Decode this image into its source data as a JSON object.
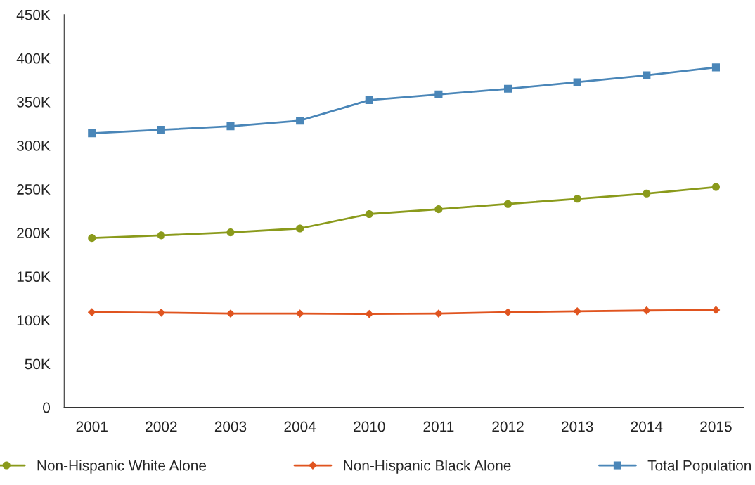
{
  "chart_data": {
    "type": "line",
    "categories": [
      "2001",
      "2002",
      "2003",
      "2004",
      "2010",
      "2011",
      "2012",
      "2013",
      "2014",
      "2015"
    ],
    "series": [
      {
        "name": "Non-Hispanic White Alone",
        "color": "#8a9a1b",
        "marker": "circle",
        "values": [
          194000,
          197000,
          200500,
          205000,
          221500,
          227000,
          233000,
          239000,
          245000,
          252500
        ]
      },
      {
        "name": "Non-Hispanic Black Alone",
        "color": "#e0541f",
        "marker": "diamond",
        "values": [
          109000,
          108500,
          107500,
          107500,
          107000,
          107500,
          109000,
          110000,
          111000,
          111500
        ]
      },
      {
        "name": "Total Population",
        "color": "#4a86b8",
        "marker": "square",
        "values": [
          314000,
          318000,
          322000,
          328500,
          352000,
          358500,
          365000,
          372500,
          380500,
          389500
        ]
      }
    ],
    "ylim": [
      0,
      450000
    ],
    "yticks": [
      {
        "value": 0,
        "label": "0"
      },
      {
        "value": 50000,
        "label": "50K"
      },
      {
        "value": 100000,
        "label": "100K"
      },
      {
        "value": 150000,
        "label": "150K"
      },
      {
        "value": 200000,
        "label": "200K"
      },
      {
        "value": 250000,
        "label": "250K"
      },
      {
        "value": 300000,
        "label": "300K"
      },
      {
        "value": 350000,
        "label": "350K"
      },
      {
        "value": 400000,
        "label": "400K"
      },
      {
        "value": 450000,
        "label": "450K"
      }
    ],
    "grid": false,
    "legend": "bottom",
    "line_style": "solid"
  }
}
